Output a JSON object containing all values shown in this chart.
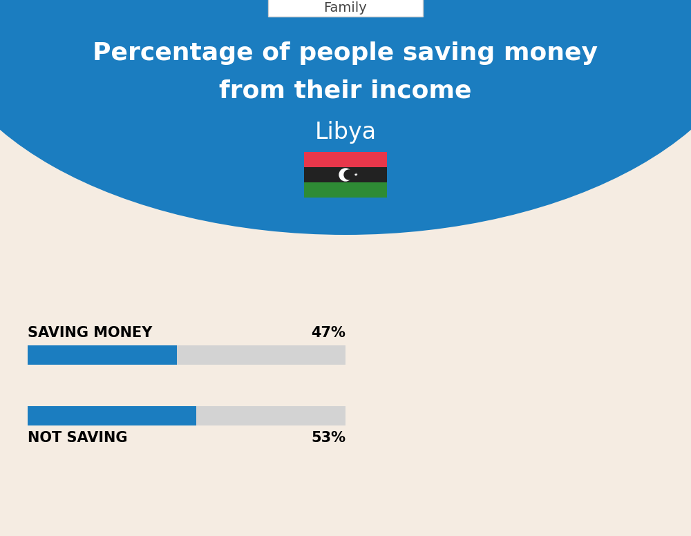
{
  "title_line1": "Percentage of people saving money",
  "title_line2": "from their income",
  "country": "Libya",
  "category_label": "Family",
  "saving_label": "SAVING MONEY",
  "saving_value": 47,
  "saving_text": "47%",
  "not_saving_label": "NOT SAVING",
  "not_saving_value": 53,
  "not_saving_text": "53%",
  "bg_color": "#f5ece2",
  "blue_color": "#1b7dc0",
  "bar_filled_color": "#1b7dc0",
  "bar_empty_color": "#d3d3d3",
  "title_color": "#ffffff",
  "country_color": "#ffffff",
  "label_color": "#000000",
  "category_text_color": "#444444",
  "flag_red": "#e8374b",
  "flag_black": "#222222",
  "flag_green": "#2e8b35",
  "fig_width": 10.0,
  "fig_height": 7.76
}
